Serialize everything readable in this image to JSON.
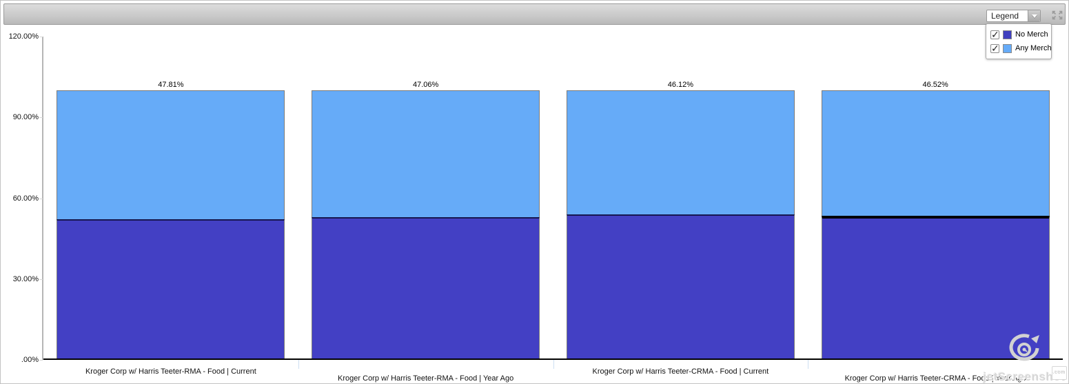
{
  "header": {
    "legend_button_label": "Legend"
  },
  "legend": {
    "check_icon": "✓",
    "items": [
      {
        "label": "No Merch",
        "color": "#4040bf",
        "checked": true
      },
      {
        "label": "Any Merch",
        "color": "#66abf8",
        "checked": true
      }
    ]
  },
  "chart_data": {
    "type": "bar",
    "stacked": true,
    "title": "",
    "xlabel": "",
    "ylabel": "",
    "categories": [
      "Kroger Corp w/ Harris Teeter-RMA - Food | Current",
      "Kroger Corp w/ Harris Teeter-RMA - Food | Year Ago",
      "Kroger Corp w/ Harris Teeter-CRMA - Food | Current",
      "Kroger Corp w/ Harris Teeter-CRMA - Food | Year Ago"
    ],
    "series": [
      {
        "name": "No Merch",
        "color": "#4340c4",
        "values": [
          52.19,
          52.94,
          53.88,
          53.48
        ]
      },
      {
        "name": "Any Merch",
        "color": "#66abf8",
        "values": [
          47.81,
          47.06,
          46.12,
          46.52
        ]
      }
    ],
    "value_label_format": "0.00%",
    "ylim": [
      0,
      120
    ],
    "ytick_values": [
      120,
      90,
      60,
      30,
      0
    ],
    "ytick_labels": [
      "120.00%",
      "90.00%",
      "60.00%",
      "30.00%",
      ".00%"
    ],
    "grid": false,
    "legend_position": "top-right-dropdown",
    "emphasized_boundary_index": 3
  },
  "watermark": {
    "text": "jetScreenshot",
    "tld": ".com"
  }
}
